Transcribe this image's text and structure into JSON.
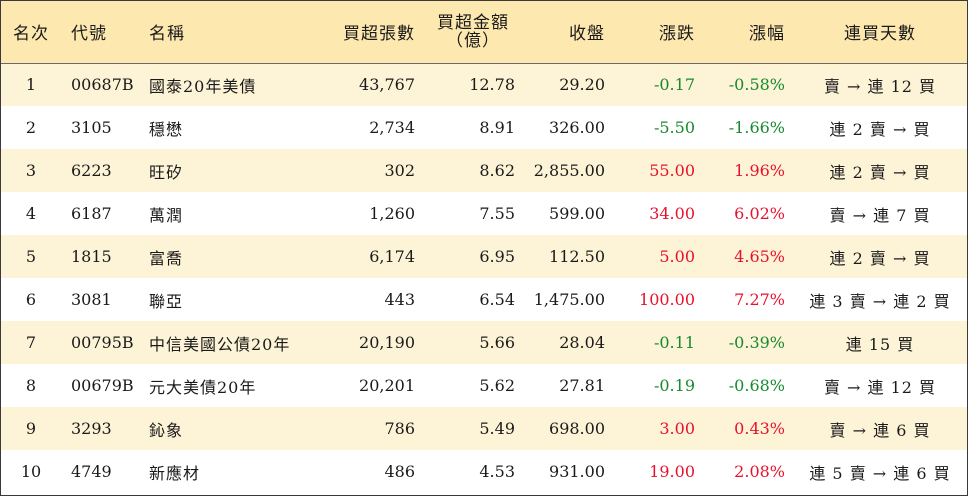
{
  "headers": {
    "rank": "名次",
    "code": "代號",
    "name": "名稱",
    "net_lots": "買超張數",
    "net_amount_line1": "買超金額",
    "net_amount_line2": "（億）",
    "close": "收盤",
    "change": "漲跌",
    "pct": "漲幅",
    "days": "連買天數"
  },
  "colors": {
    "header_bg": "#fde8b0",
    "stripe_bg": "#fdf3d6",
    "up": "#e8112d",
    "down": "#168a2c"
  },
  "rows": [
    {
      "rank": "1",
      "code": "00687B",
      "name": "國泰20年美債",
      "net_lots": "43,767",
      "amount": "12.78",
      "close": "29.20",
      "change": "-0.17",
      "pct": "-0.58%",
      "dir": "neg",
      "days": "賣 → 連 12 買"
    },
    {
      "rank": "2",
      "code": "3105",
      "name": "穩懋",
      "net_lots": "2,734",
      "amount": "8.91",
      "close": "326.00",
      "change": "-5.50",
      "pct": "-1.66%",
      "dir": "neg",
      "days": "連 2 賣 → 買"
    },
    {
      "rank": "3",
      "code": "6223",
      "name": "旺矽",
      "net_lots": "302",
      "amount": "8.62",
      "close": "2,855.00",
      "change": "55.00",
      "pct": "1.96%",
      "dir": "pos",
      "days": "連 2 賣 → 買"
    },
    {
      "rank": "4",
      "code": "6187",
      "name": "萬潤",
      "net_lots": "1,260",
      "amount": "7.55",
      "close": "599.00",
      "change": "34.00",
      "pct": "6.02%",
      "dir": "pos",
      "days": "賣 → 連 7 買"
    },
    {
      "rank": "5",
      "code": "1815",
      "name": "富喬",
      "net_lots": "6,174",
      "amount": "6.95",
      "close": "112.50",
      "change": "5.00",
      "pct": "4.65%",
      "dir": "pos",
      "days": "連 2 賣 → 買"
    },
    {
      "rank": "6",
      "code": "3081",
      "name": "聯亞",
      "net_lots": "443",
      "amount": "6.54",
      "close": "1,475.00",
      "change": "100.00",
      "pct": "7.27%",
      "dir": "pos",
      "days": "連 3 賣 → 連 2 買"
    },
    {
      "rank": "7",
      "code": "00795B",
      "name": "中信美國公債20年",
      "net_lots": "20,190",
      "amount": "5.66",
      "close": "28.04",
      "change": "-0.11",
      "pct": "-0.39%",
      "dir": "neg",
      "days": "連 15 買"
    },
    {
      "rank": "8",
      "code": "00679B",
      "name": "元大美債20年",
      "net_lots": "20,201",
      "amount": "5.62",
      "close": "27.81",
      "change": "-0.19",
      "pct": "-0.68%",
      "dir": "neg",
      "days": "賣 → 連 12 買"
    },
    {
      "rank": "9",
      "code": "3293",
      "name": "鈊象",
      "net_lots": "786",
      "amount": "5.49",
      "close": "698.00",
      "change": "3.00",
      "pct": "0.43%",
      "dir": "pos",
      "days": "賣 → 連 6 買"
    },
    {
      "rank": "10",
      "code": "4749",
      "name": "新應材",
      "net_lots": "486",
      "amount": "4.53",
      "close": "931.00",
      "change": "19.00",
      "pct": "2.08%",
      "dir": "pos",
      "days": "連 5 賣 → 連 6 買"
    }
  ]
}
